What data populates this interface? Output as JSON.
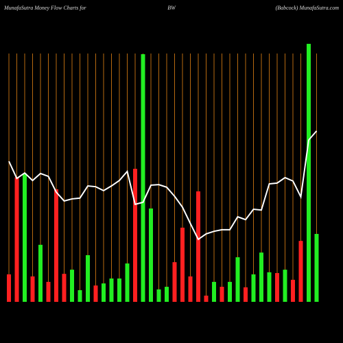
{
  "chart_data": {
    "type": "bar",
    "title_left": "MunafaSutra  Money Flow  Charts for",
    "title_center": "BW",
    "title_right": "(Babcock) MunafaSutra.com",
    "categories": [
      null,
      null,
      null,
      null,
      null,
      null,
      null,
      null,
      null,
      null,
      null,
      null,
      null,
      null,
      null,
      null,
      null,
      null,
      null,
      null,
      null,
      null,
      null,
      null,
      null,
      null,
      null,
      null,
      null,
      null,
      null,
      null,
      null,
      null,
      null,
      null,
      null,
      null,
      null,
      null
    ],
    "values": [
      10.6,
      48,
      49.5,
      9.8,
      22,
      7.7,
      43.4,
      10.8,
      12.4,
      4.5,
      18,
      6.3,
      7.1,
      9,
      9,
      14.8,
      51.3,
      95.5,
      36,
      4.8,
      5.8,
      15.3,
      28.6,
      9.8,
      42.6,
      2.4,
      7.7,
      5.8,
      7.7,
      17.2,
      5.6,
      10.6,
      19,
      11.4,
      11.1,
      12.4,
      8.5,
      23.5,
      99.5,
      26.2
    ],
    "colors": [
      "#ff2020",
      "#ff2020",
      "#22ee22",
      "#ff2020",
      "#22ee22",
      "#ff2020",
      "#ff2020",
      "#ff2020",
      "#22ee22",
      "#22ee22",
      "#22ee22",
      "#ff2020",
      "#22ee22",
      "#22ee22",
      "#22ee22",
      "#22ee22",
      "#ff2020",
      "#22ee22",
      "#22ee22",
      "#22ee22",
      "#22ee22",
      "#ff2020",
      "#ff2020",
      "#ff2020",
      "#ff2020",
      "#ff2020",
      "#22ee22",
      "#ff2020",
      "#22ee22",
      "#22ee22",
      "#ff2020",
      "#22ee22",
      "#22ee22",
      "#22ee22",
      "#ff2020",
      "#22ee22",
      "#ff2020",
      "#ff2020",
      "#22ee22",
      "#22ee22"
    ],
    "line": {
      "color": "#ffffff",
      "values": [
        54.2,
        47.6,
        49.7,
        46.8,
        49.5,
        48.4,
        42.3,
        38.9,
        39.7,
        40.0,
        44.7,
        44.4,
        42.9,
        44.7,
        46.8,
        50.3,
        37.6,
        38.4,
        45.0,
        45.2,
        44.2,
        40.7,
        36.5,
        30.2,
        24.1,
        26.2,
        27.2,
        27.8,
        27.8,
        32.8,
        31.7,
        35.7,
        35.4,
        45.5,
        45.8,
        47.9,
        46.6,
        40.5,
        62.4,
        65.9
      ]
    },
    "ylim": [
      0,
      100
    ],
    "grid_color": "#b86a10"
  }
}
